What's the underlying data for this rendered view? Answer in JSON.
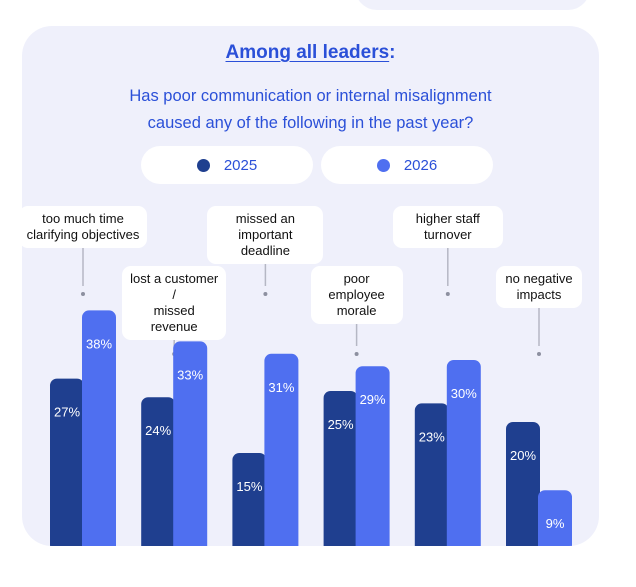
{
  "heading": {
    "highlight": "Among all leaders",
    "suffix": ":"
  },
  "question_lines": [
    "Has poor communication or internal misalignment",
    "caused any of the following in the past year?"
  ],
  "colors": {
    "dark": "#1f3f8f",
    "light": "#4f6ff0",
    "card_bg": "#eff0fb",
    "text_blue": "#2b50d8"
  },
  "chart_data": {
    "type": "bar",
    "categories": [
      "too much time clarifying objectives",
      "lost a customer / missed revenue",
      "missed an important deadline",
      "poor employee morale",
      "higher staff turnover",
      "no negative impacts"
    ],
    "category_lines": [
      [
        "too much time",
        "clarifying objectives"
      ],
      [
        "lost a customer /",
        "missed revenue"
      ],
      [
        "missed an",
        "important deadline"
      ],
      [
        "poor employee",
        "morale"
      ],
      [
        "higher staff",
        "turnover"
      ],
      [
        "no negative",
        "impacts"
      ]
    ],
    "series": [
      {
        "name": "2025",
        "color": "#1f3f8f",
        "values": [
          27,
          24,
          15,
          25,
          23,
          20
        ]
      },
      {
        "name": "2026",
        "color": "#4f6ff0",
        "values": [
          38,
          33,
          31,
          29,
          30,
          9
        ]
      }
    ],
    "value_suffix": "%",
    "ylim": [
      0,
      45
    ],
    "grid": false,
    "legend_position": "top"
  }
}
